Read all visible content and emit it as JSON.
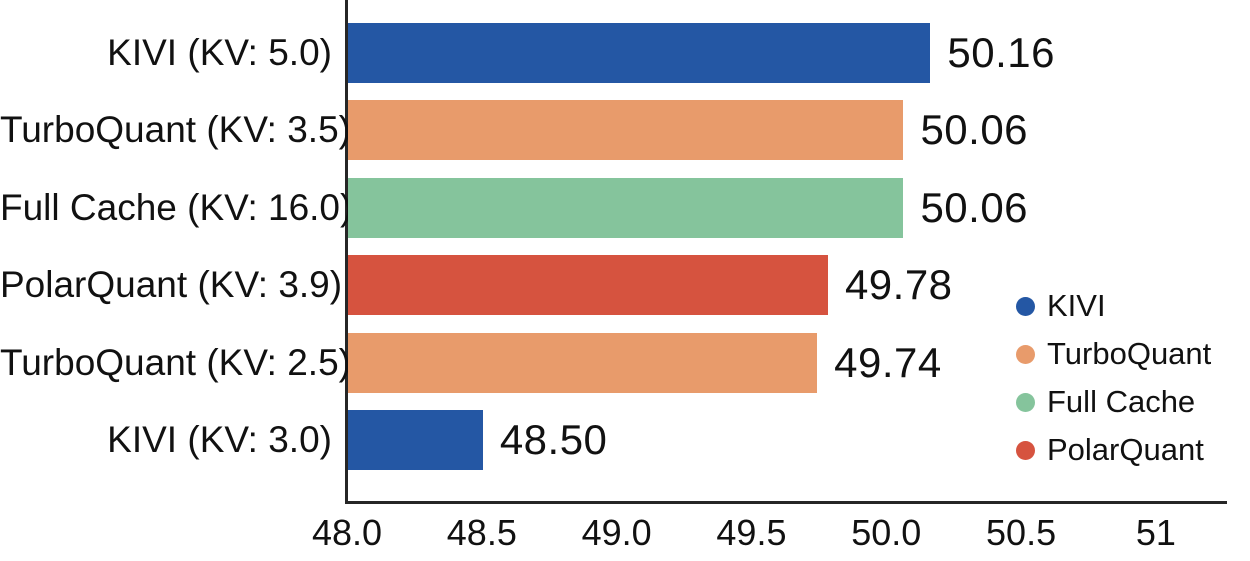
{
  "chart_data": {
    "type": "bar",
    "orientation": "horizontal",
    "title": "",
    "xlabel": "",
    "ylabel": "",
    "categories": [
      "KIVI (KV: 5.0)",
      "TurboQuant (KV: 3.5)",
      "Full Cache (KV: 16.0)",
      "PolarQuant (KV: 3.9)",
      "TurboQuant (KV: 2.5)",
      "KIVI (KV: 3.0)"
    ],
    "values": [
      50.16,
      50.06,
      50.06,
      49.78,
      49.74,
      48.5
    ],
    "value_labels": [
      "50.16",
      "50.06",
      "50.06",
      "49.78",
      "49.74",
      "48.50"
    ],
    "bar_series": [
      "KIVI",
      "TurboQuant",
      "Full Cache",
      "PolarQuant",
      "TurboQuant",
      "KIVI"
    ],
    "series_colors": {
      "KIVI": "#2457a4",
      "TurboQuant": "#e89b6b",
      "Full Cache": "#85c49c",
      "PolarQuant": "#d6533f"
    },
    "xlim": [
      48.0,
      51.26
    ],
    "x_tick_values": [
      48.0,
      48.5,
      49.0,
      49.5,
      50.0,
      50.5,
      51.0
    ],
    "x_tick_labels": [
      "48.0",
      "48.5",
      "49.0",
      "49.5",
      "50.0",
      "50.5",
      "51"
    ],
    "grid": false,
    "legend": {
      "position": "center-right",
      "entries": [
        {
          "label": "KIVI",
          "color": "#2457a4"
        },
        {
          "label": "TurboQuant",
          "color": "#e89b6b"
        },
        {
          "label": "Full Cache",
          "color": "#85c49c"
        },
        {
          "label": "PolarQuant",
          "color": "#d6533f"
        }
      ]
    }
  }
}
